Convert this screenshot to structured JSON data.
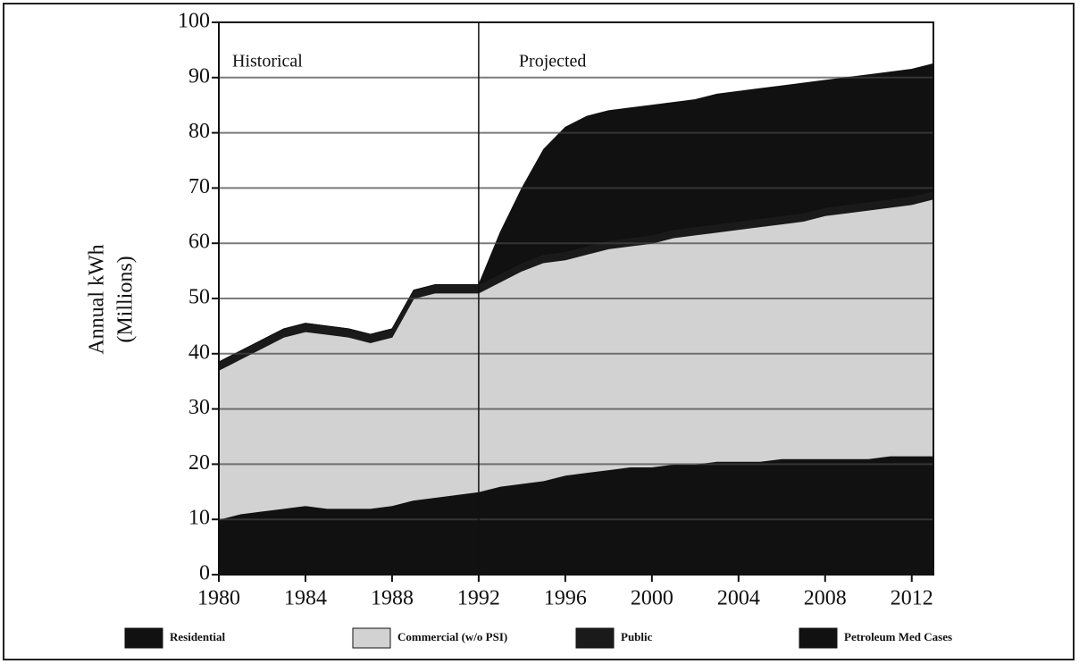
{
  "chart_data": {
    "type": "stacked_area",
    "y_label": [
      "Annual kWh",
      "(Millions)"
    ],
    "annotations": [
      "Historical",
      "Projected"
    ],
    "projection_start": 1992,
    "x": [
      1980,
      1981,
      1982,
      1983,
      1984,
      1985,
      1986,
      1987,
      1988,
      1989,
      1990,
      1991,
      1992,
      1993,
      1994,
      1995,
      1996,
      1997,
      1998,
      1999,
      2000,
      2001,
      2002,
      2003,
      2004,
      2005,
      2006,
      2007,
      2008,
      2009,
      2010,
      2011,
      2012,
      2013
    ],
    "series": [
      {
        "name": "Residential",
        "color": "#111111",
        "values": [
          10,
          11,
          11.5,
          12,
          12.5,
          12,
          12,
          12,
          12.5,
          13.5,
          14,
          14.5,
          15,
          16,
          16.5,
          17,
          18,
          18.5,
          19,
          19.5,
          19.5,
          20,
          20,
          20.5,
          20.5,
          20.5,
          21,
          21,
          21,
          21,
          21,
          21.5,
          21.5,
          21.5
        ]
      },
      {
        "name": "Commercial (w/o PSI)",
        "color": "#d2d2d2",
        "values": [
          27,
          28,
          29.5,
          31,
          31.5,
          31.5,
          31,
          30,
          30.5,
          36.5,
          37,
          36.5,
          36,
          37,
          38.5,
          39.5,
          39,
          39.5,
          40,
          40,
          40.5,
          41,
          41.5,
          41.5,
          42,
          42.5,
          42.5,
          43,
          44,
          44.5,
          45,
          45,
          45.5,
          46.5
        ]
      },
      {
        "name": "Public",
        "color": "#1a1a1a",
        "values": [
          1.5,
          1.5,
          1.5,
          1.5,
          1.5,
          1.5,
          1.5,
          1.5,
          1.5,
          1.5,
          1.5,
          1.5,
          1.5,
          1.5,
          1.5,
          1.5,
          1.5,
          1.5,
          1.5,
          1.5,
          1.5,
          1.5,
          1.5,
          1.5,
          1.5,
          1.5,
          1.5,
          1.5,
          1.5,
          1.5,
          1.5,
          1.5,
          1.5,
          1.5
        ]
      },
      {
        "name": "Petroleum Med Cases",
        "color": "#111111",
        "values": [
          0,
          0,
          0,
          0,
          0,
          0,
          0,
          0,
          0,
          0,
          0,
          0,
          0,
          7.5,
          13.5,
          19,
          22.5,
          23.5,
          23.5,
          23.5,
          23.5,
          23,
          23,
          23.5,
          23.5,
          23.5,
          23.5,
          23.5,
          23,
          23,
          23,
          23,
          23,
          23
        ]
      }
    ],
    "xlim": [
      1980,
      2013
    ],
    "xticks": [
      1980,
      1984,
      1988,
      1992,
      1996,
      2000,
      2004,
      2008,
      2012
    ],
    "ylim": [
      0,
      100
    ],
    "yticks": [
      0,
      10,
      20,
      30,
      40,
      50,
      60,
      70,
      80,
      90,
      100
    ],
    "grid": true
  }
}
